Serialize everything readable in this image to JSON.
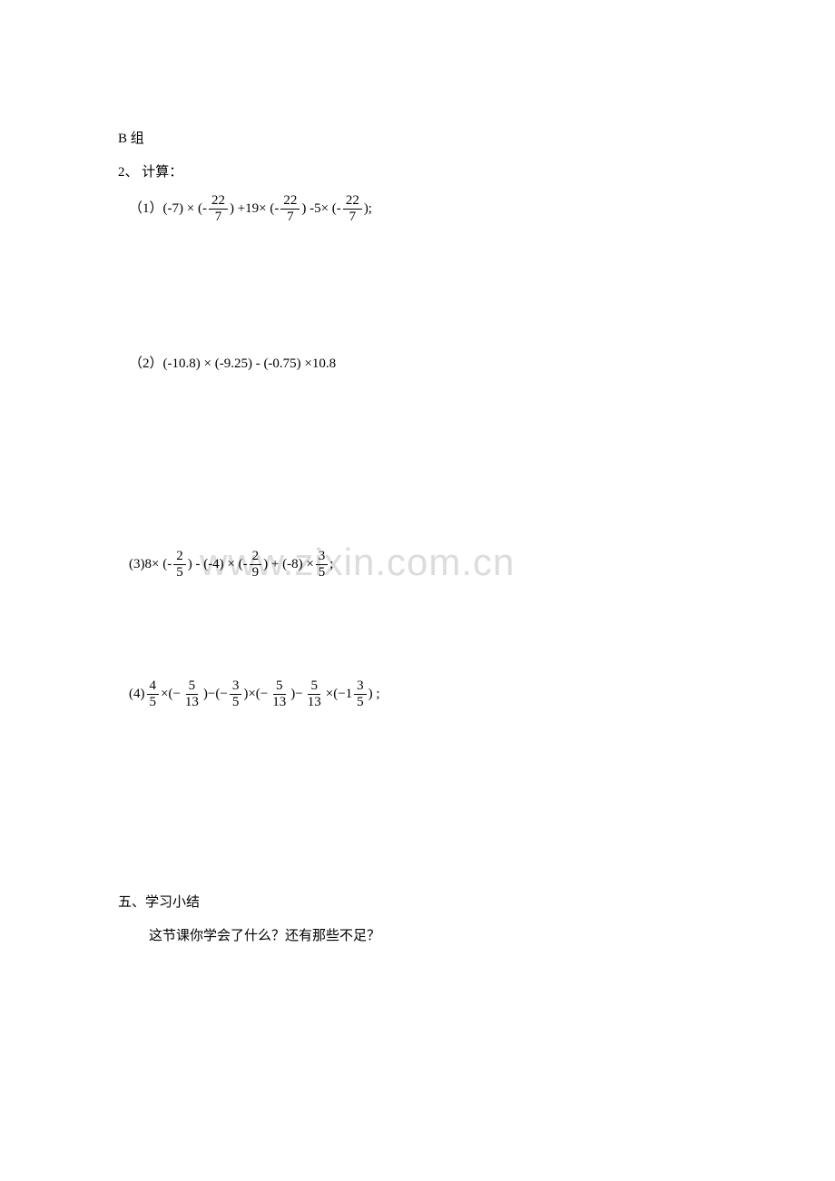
{
  "watermark": "www.zixin.com.cn",
  "group_b": {
    "label": "B 组",
    "problem_number": "2、 计算：",
    "problems": {
      "p1": {
        "label": "（1）",
        "text_parts": [
          "(-7) × (-",
          ") +19× (-",
          ") -5× (-",
          ");"
        ],
        "frac": {
          "num": "22",
          "den": "7"
        }
      },
      "p2": {
        "label": "（2）",
        "text": "(-10.8) × (-9.25) - (-0.75) ×10.8"
      },
      "p3": {
        "label": "(3) ",
        "text_parts": [
          "8× (-",
          ") - (-4) × (-",
          ") + (-8) ×",
          ";"
        ],
        "fracs": [
          {
            "num": "2",
            "den": "5"
          },
          {
            "num": "2",
            "den": "9"
          },
          {
            "num": "3",
            "den": "5"
          }
        ]
      },
      "p4": {
        "label": "(4) ",
        "fracs": [
          {
            "num": "4",
            "den": "5"
          },
          {
            "num": "5",
            "den": "13"
          },
          {
            "num": "3",
            "den": "5"
          },
          {
            "num": "5",
            "den": "13"
          },
          {
            "num": "5",
            "den": "13"
          },
          {
            "num": "3",
            "den": "5"
          }
        ],
        "text_parts": [
          "  ×(−",
          ")−(−",
          ")×(−",
          ")−",
          "×(−1",
          ") ;"
        ]
      }
    }
  },
  "section5": {
    "heading": "五、学习小结",
    "question": "这节课你学会了什么？还有那些不足？"
  },
  "colors": {
    "text": "#000000",
    "background": "#ffffff",
    "watermark": "#dcdcdc"
  },
  "fonts": {
    "body_size": 15,
    "watermark_size": 42
  }
}
